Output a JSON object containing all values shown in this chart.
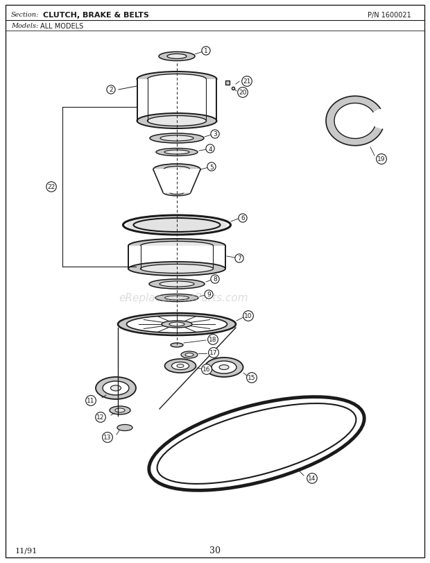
{
  "title_section": "Section:",
  "title_name": "CLUTCH, BRAKE & BELTS",
  "title_pn": "P/N 1600021",
  "title_models": "Models:",
  "title_models_val": "ALL MODELS",
  "watermark": "eReplacementParts.com",
  "page_num": "30",
  "date": "11/91",
  "bg_color": "#ffffff",
  "line_color": "#1a1a1a",
  "part_color": "#1a1a1a",
  "part_fill": "#c8c8c8",
  "part_fill_light": "#e8e8e8",
  "part_fill_white": "#ffffff"
}
